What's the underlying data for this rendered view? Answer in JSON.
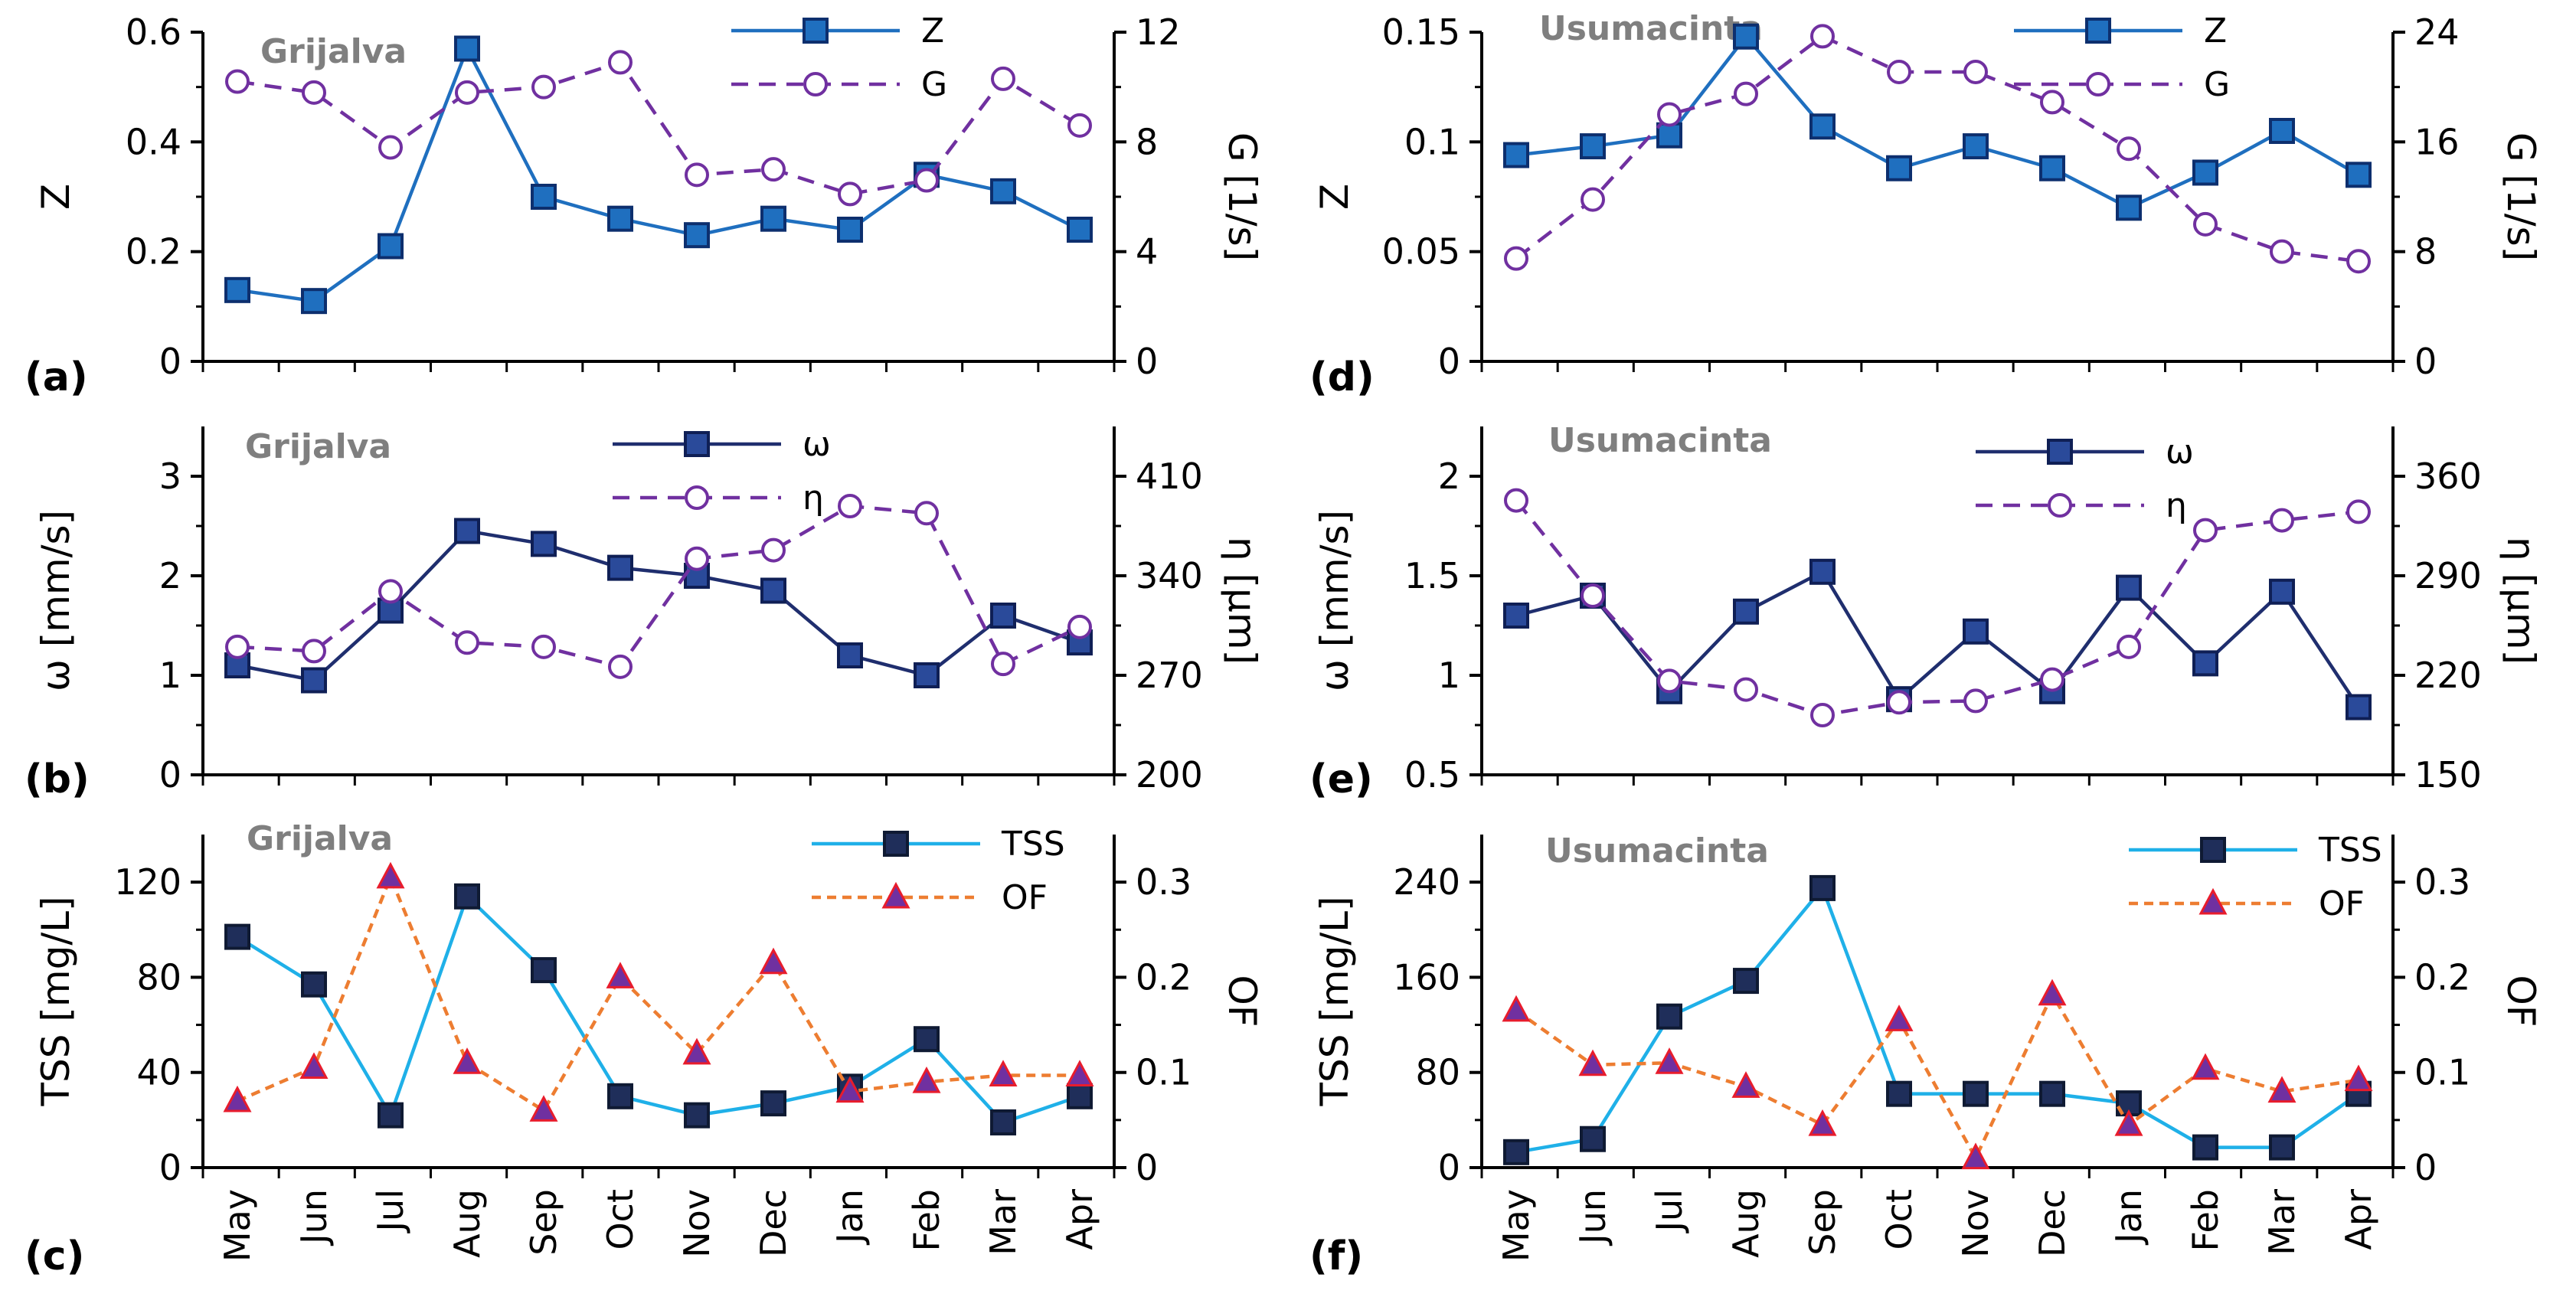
{
  "months": [
    "May",
    "Jun",
    "Jul",
    "Aug",
    "Sep",
    "Oct",
    "Nov",
    "Dec",
    "Jan",
    "Feb",
    "Mar",
    "Apr"
  ],
  "chart_data": [
    {
      "panel": "(a)",
      "river": "Grijalva",
      "type": "line",
      "ylabel_left": "Z",
      "ylabel_right": "G [1/s]",
      "ylim_left": [
        0,
        0.6
      ],
      "yticks_left": [
        0,
        0.2,
        0.4,
        0.6
      ],
      "yticklabels_left": [
        "0",
        "0.2",
        "0.4",
        "0.6"
      ],
      "ylim_right": [
        0,
        12
      ],
      "yticks_right": [
        0,
        4,
        8,
        12
      ],
      "yticklabels_right": [
        "0",
        "4",
        "8",
        "12"
      ],
      "show_xlabels": false,
      "series": [
        {
          "name": "Z",
          "axis": "left",
          "color": "#1f6fbf",
          "dash": "",
          "marker": "square",
          "markerFill": "#1f6fbf",
          "markerStroke": "#0d2f6e",
          "values": [
            0.13,
            0.11,
            0.21,
            0.57,
            0.3,
            0.26,
            0.23,
            0.26,
            0.24,
            0.34,
            0.31,
            0.24
          ]
        },
        {
          "name": "G",
          "axis": "right",
          "color": "#7030a0",
          "dash": "22,14",
          "marker": "circle",
          "markerFill": "#ffffff",
          "markerStroke": "#7030a0",
          "values": [
            10.2,
            9.8,
            7.8,
            9.8,
            10.0,
            10.9,
            6.8,
            7.0,
            6.1,
            6.6,
            10.3,
            8.6
          ]
        }
      ]
    },
    {
      "panel": "(b)",
      "river": "Grijalva",
      "type": "line",
      "ylabel_left": "ω [mm/s]",
      "ylabel_right": "η [μm]",
      "ylim_left": [
        0,
        3.5
      ],
      "yticks_left": [
        0,
        1,
        2,
        3
      ],
      "yticklabels_left": [
        "0",
        "1",
        "2",
        "3"
      ],
      "ylim_right": [
        200,
        445
      ],
      "yticks_right": [
        200,
        270,
        340,
        410
      ],
      "yticklabels_right": [
        "200",
        "270",
        "340",
        "410"
      ],
      "show_xlabels": false,
      "series": [
        {
          "name": "ω",
          "axis": "left",
          "color": "#1f2e6e",
          "dash": "",
          "marker": "square",
          "markerFill": "#2a4a9a",
          "markerStroke": "#0f1f55",
          "values": [
            1.1,
            0.95,
            1.65,
            2.45,
            2.32,
            2.08,
            2.0,
            1.85,
            1.2,
            1.0,
            1.6,
            1.33
          ]
        },
        {
          "name": "η",
          "axis": "right",
          "color": "#7030a0",
          "dash": "22,14",
          "marker": "circle",
          "markerFill": "#ffffff",
          "markerStroke": "#7030a0",
          "values": [
            290,
            287,
            329,
            293,
            290,
            276,
            352,
            358,
            389,
            384,
            278,
            304
          ]
        }
      ]
    },
    {
      "panel": "(c)",
      "river": "Grijalva",
      "type": "line",
      "ylabel_left": "TSS [mg/L]",
      "ylabel_right": "OF",
      "ylim_left": [
        0,
        140
      ],
      "yticks_left": [
        0,
        40,
        80,
        120
      ],
      "yticklabels_left": [
        "0",
        "40",
        "80",
        "120"
      ],
      "ylim_right": [
        0,
        0.35
      ],
      "yticks_right": [
        0,
        0.1,
        0.2,
        0.3
      ],
      "yticklabels_right": [
        "0",
        "0.1",
        "0.2",
        "0.3"
      ],
      "show_xlabels": true,
      "series": [
        {
          "name": "TSS",
          "axis": "left",
          "color": "#1fb0e8",
          "dash": "",
          "marker": "square",
          "markerFill": "#1f2e5a",
          "markerStroke": "#0f1a33",
          "values": [
            97,
            77,
            22,
            114,
            83,
            30,
            22,
            27,
            34,
            54,
            19,
            30
          ]
        },
        {
          "name": "OF",
          "axis": "right",
          "color": "#ed7d31",
          "dash": "12,8",
          "marker": "triangle",
          "markerFill": "#7030a0",
          "markerStroke": "#e81c2c",
          "values": [
            0.07,
            0.105,
            0.305,
            0.11,
            0.06,
            0.2,
            0.12,
            0.215,
            0.08,
            0.09,
            0.097,
            0.097
          ]
        }
      ]
    },
    {
      "panel": "(d)",
      "river": "Usumacinta",
      "type": "line",
      "ylabel_left": "Z",
      "ylabel_right": "G [1/s]",
      "ylim_left": [
        0,
        0.15
      ],
      "yticks_left": [
        0,
        0.05,
        0.1,
        0.15
      ],
      "yticklabels_left": [
        "0",
        "0.05",
        "0.1",
        "0.15"
      ],
      "ylim_right": [
        0,
        24
      ],
      "yticks_right": [
        0,
        8,
        16,
        24
      ],
      "yticklabels_right": [
        "0",
        "8",
        "16",
        "24"
      ],
      "show_xlabels": false,
      "series": [
        {
          "name": "Z",
          "axis": "left",
          "color": "#1f6fbf",
          "dash": "",
          "marker": "square",
          "markerFill": "#1f6fbf",
          "markerStroke": "#0d2f6e",
          "values": [
            0.094,
            0.098,
            0.103,
            0.148,
            0.107,
            0.088,
            0.098,
            0.088,
            0.07,
            0.086,
            0.105,
            0.085
          ]
        },
        {
          "name": "G",
          "axis": "right",
          "color": "#7030a0",
          "dash": "22,14",
          "marker": "circle",
          "markerFill": "#ffffff",
          "markerStroke": "#7030a0",
          "values": [
            7.5,
            11.8,
            18.0,
            19.5,
            23.7,
            21.1,
            21.1,
            18.9,
            15.5,
            10.0,
            8.0,
            7.3
          ]
        }
      ]
    },
    {
      "panel": "(e)",
      "river": "Usumacinta",
      "type": "line",
      "ylabel_left": "ω [mm/s]",
      "ylabel_right": "η [μm]",
      "ylim_left": [
        0.5,
        2.25
      ],
      "yticks_left": [
        0.5,
        1,
        1.5,
        2
      ],
      "yticklabels_left": [
        "0.5",
        "1",
        "1.5",
        "2"
      ],
      "ylim_right": [
        150,
        395
      ],
      "yticks_right": [
        150,
        220,
        290,
        360
      ],
      "yticklabels_right": [
        "150",
        "220",
        "290",
        "360"
      ],
      "show_xlabels": false,
      "series": [
        {
          "name": "ω",
          "axis": "left",
          "color": "#1f2e6e",
          "dash": "",
          "marker": "square",
          "markerFill": "#2a4a9a",
          "markerStroke": "#0f1f55",
          "values": [
            1.3,
            1.4,
            0.92,
            1.32,
            1.52,
            0.88,
            1.22,
            0.92,
            1.44,
            1.06,
            1.42,
            0.84
          ]
        },
        {
          "name": "η",
          "axis": "right",
          "color": "#7030a0",
          "dash": "22,14",
          "marker": "circle",
          "markerFill": "#ffffff",
          "markerStroke": "#7030a0",
          "values": [
            343,
            276,
            216,
            210,
            192,
            201,
            202,
            217,
            240,
            322,
            329,
            335
          ]
        }
      ]
    },
    {
      "panel": "(f)",
      "river": "Usumacinta",
      "type": "line",
      "ylabel_left": "TSS [mg/L]",
      "ylabel_right": "OF",
      "ylim_left": [
        0,
        280
      ],
      "yticks_left": [
        0,
        80,
        160,
        240
      ],
      "yticklabels_left": [
        "0",
        "80",
        "160",
        "240"
      ],
      "ylim_right": [
        0,
        0.35
      ],
      "yticks_right": [
        0,
        0.1,
        0.2,
        0.3
      ],
      "yticklabels_right": [
        "0",
        "0.1",
        "0.2",
        "0.3"
      ],
      "show_xlabels": true,
      "series": [
        {
          "name": "TSS",
          "axis": "left",
          "color": "#1fb0e8",
          "dash": "",
          "marker": "square",
          "markerFill": "#1f2e5a",
          "markerStroke": "#0f1a33",
          "values": [
            13,
            24,
            127,
            157,
            235,
            62,
            62,
            62,
            54,
            17,
            17,
            62
          ]
        },
        {
          "name": "OF",
          "axis": "right",
          "color": "#ed7d31",
          "dash": "12,8",
          "marker": "triangle",
          "markerFill": "#7030a0",
          "markerStroke": "#e81c2c",
          "values": [
            0.165,
            0.108,
            0.11,
            0.085,
            0.045,
            0.155,
            0.01,
            0.182,
            0.045,
            0.104,
            0.08,
            0.092
          ]
        }
      ]
    }
  ]
}
